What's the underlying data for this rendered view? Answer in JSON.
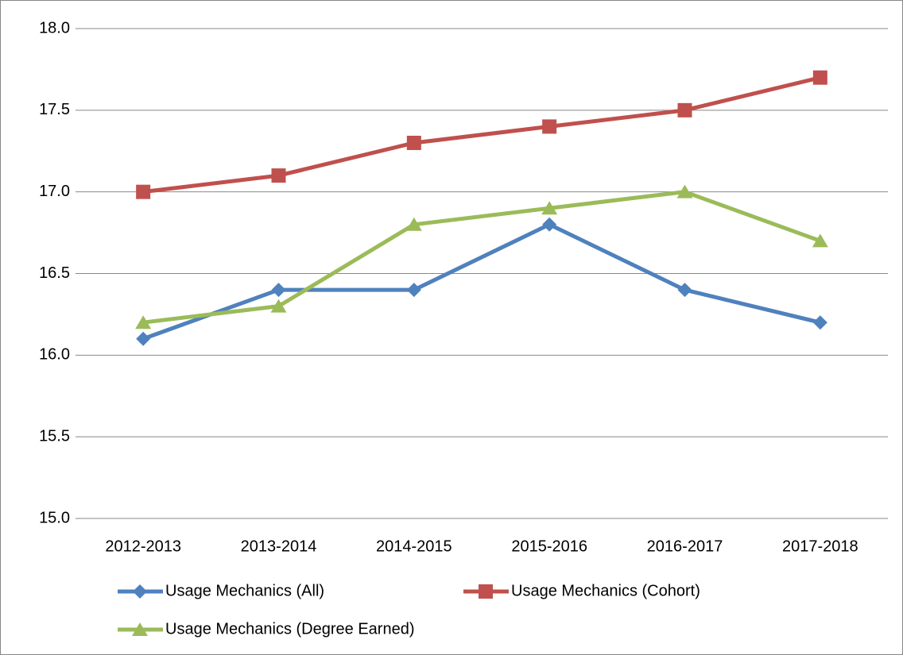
{
  "chart_data": {
    "type": "line",
    "categories": [
      "2012-2013",
      "2013-2014",
      "2014-2015",
      "2015-2016",
      "2016-2017",
      "2017-2018"
    ],
    "series": [
      {
        "name": "Usage Mechanics (All)",
        "color": "#4f81bd",
        "marker": "diamond",
        "values": [
          16.1,
          16.4,
          16.4,
          16.8,
          16.4,
          16.2
        ]
      },
      {
        "name": "Usage Mechanics (Cohort)",
        "color": "#c0504d",
        "marker": "square",
        "values": [
          17.0,
          17.1,
          17.3,
          17.4,
          17.5,
          17.7
        ]
      },
      {
        "name": "Usage Mechanics (Degree Earned)",
        "color": "#9bbb59",
        "marker": "triangle",
        "values": [
          16.2,
          16.3,
          16.8,
          16.9,
          17.0,
          16.7
        ]
      }
    ],
    "ylim": [
      15,
      18
    ],
    "yticks": [
      {
        "value": 15,
        "label": "15.0"
      },
      15.5,
      {
        "value": 16,
        "label": "16.0"
      },
      16.5,
      {
        "value": 17,
        "label": "17.0"
      },
      17.5,
      {
        "value": 18,
        "label": "18.0"
      }
    ],
    "grid": true,
    "legend": "bottom"
  }
}
